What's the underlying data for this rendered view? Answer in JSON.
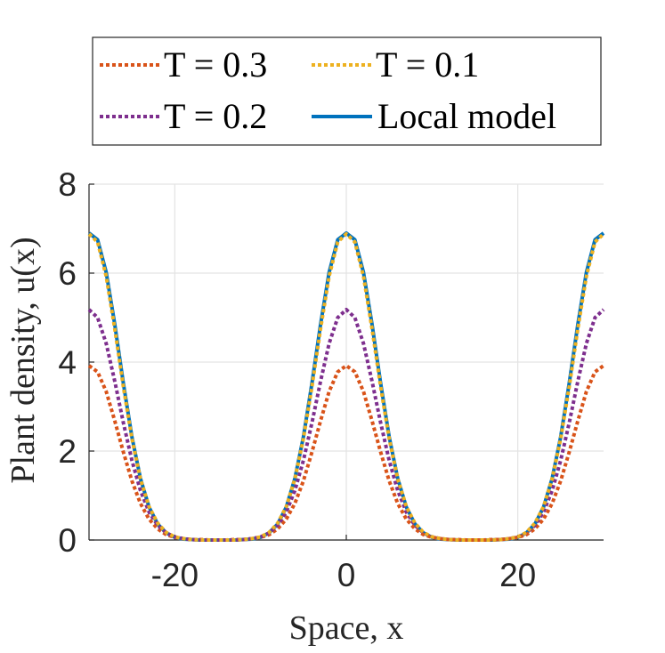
{
  "chart_data": {
    "type": "line",
    "title": "",
    "xlabel": "Space, x",
    "ylabel": "Plant density, u(x)",
    "xlim": [
      -30,
      30
    ],
    "ylim": [
      0,
      8
    ],
    "grid": true,
    "legend_placement": "top, outside plot",
    "x_ticks": [
      -20,
      0,
      20
    ],
    "x_tick_labels": [
      "-20",
      "0",
      "20"
    ],
    "y_ticks": [
      0,
      2,
      4,
      6,
      8
    ],
    "y_tick_labels": [
      "0",
      "2",
      "4",
      "6",
      "8"
    ],
    "x": [
      -30,
      -29,
      -28,
      -27,
      -26,
      -25,
      -24,
      -23,
      -22,
      -21,
      -20,
      -19,
      -18,
      -17,
      -16,
      -15,
      -14,
      -13,
      -12,
      -11,
      -10,
      -9,
      -8,
      -7,
      -6,
      -5,
      -4,
      -3,
      -2,
      -1,
      0,
      1,
      2,
      3,
      4,
      5,
      6,
      7,
      8,
      9,
      10,
      11,
      12,
      13,
      14,
      15,
      16,
      17,
      18,
      19,
      20,
      21,
      22,
      23,
      24,
      25,
      26,
      27,
      28,
      29,
      30
    ],
    "series": [
      {
        "name": "T = 0.3",
        "legend_label": "T = 0.3",
        "color": "#D95319",
        "style": "dotted",
        "values": [
          3.92,
          3.78,
          3.34,
          2.68,
          1.98,
          1.33,
          0.82,
          0.47,
          0.25,
          0.12,
          0.06,
          0.03,
          0.01,
          0.01,
          0.0,
          0.0,
          0.0,
          0.01,
          0.01,
          0.03,
          0.06,
          0.12,
          0.25,
          0.47,
          0.82,
          1.33,
          1.98,
          2.68,
          3.34,
          3.78,
          3.92,
          3.78,
          3.34,
          2.68,
          1.98,
          1.33,
          0.82,
          0.47,
          0.25,
          0.12,
          0.06,
          0.03,
          0.01,
          0.01,
          0.0,
          0.0,
          0.0,
          0.01,
          0.01,
          0.03,
          0.06,
          0.12,
          0.25,
          0.47,
          0.82,
          1.33,
          1.98,
          2.68,
          3.34,
          3.78,
          3.92
        ]
      },
      {
        "name": "T = 0.2",
        "legend_label": "T = 0.2",
        "color": "#7E2F8E",
        "style": "dotted",
        "values": [
          5.18,
          5.0,
          4.42,
          3.57,
          2.64,
          1.79,
          1.11,
          0.63,
          0.33,
          0.16,
          0.07,
          0.03,
          0.01,
          0.0,
          0.0,
          0.0,
          0.0,
          0.0,
          0.01,
          0.03,
          0.07,
          0.16,
          0.33,
          0.63,
          1.11,
          1.79,
          2.64,
          3.57,
          4.42,
          5.0,
          5.18,
          5.0,
          4.42,
          3.57,
          2.64,
          1.79,
          1.11,
          0.63,
          0.33,
          0.16,
          0.07,
          0.03,
          0.01,
          0.0,
          0.0,
          0.0,
          0.0,
          0.0,
          0.01,
          0.03,
          0.07,
          0.16,
          0.33,
          0.63,
          1.11,
          1.79,
          2.64,
          3.57,
          4.42,
          5.0,
          5.18
        ]
      },
      {
        "name": "T = 0.1",
        "legend_label": "T = 0.1",
        "color": "#EDB120",
        "style": "dotted",
        "values": [
          6.88,
          6.7,
          5.93,
          4.75,
          3.45,
          2.28,
          1.37,
          0.75,
          0.38,
          0.17,
          0.07,
          0.03,
          0.01,
          0.0,
          0.0,
          0.0,
          0.0,
          0.0,
          0.01,
          0.03,
          0.07,
          0.17,
          0.38,
          0.75,
          1.37,
          2.28,
          3.45,
          4.75,
          5.93,
          6.7,
          6.88,
          6.7,
          5.93,
          4.75,
          3.45,
          2.28,
          1.37,
          0.75,
          0.38,
          0.17,
          0.07,
          0.03,
          0.01,
          0.0,
          0.0,
          0.0,
          0.0,
          0.0,
          0.01,
          0.03,
          0.07,
          0.17,
          0.38,
          0.75,
          1.37,
          2.28,
          3.45,
          4.75,
          5.93,
          6.7,
          6.88
        ]
      },
      {
        "name": "Local model",
        "legend_label": "Local model",
        "color": "#0072BD",
        "style": "solid",
        "values": [
          6.9,
          6.75,
          6.02,
          4.85,
          3.53,
          2.32,
          1.38,
          0.74,
          0.36,
          0.16,
          0.06,
          0.02,
          0.01,
          0.0,
          0.0,
          0.0,
          0.0,
          0.0,
          0.01,
          0.02,
          0.06,
          0.16,
          0.36,
          0.74,
          1.38,
          2.32,
          3.53,
          4.85,
          6.02,
          6.75,
          6.9,
          6.75,
          6.02,
          4.85,
          3.53,
          2.32,
          1.38,
          0.74,
          0.36,
          0.16,
          0.06,
          0.02,
          0.01,
          0.0,
          0.0,
          0.0,
          0.0,
          0.0,
          0.01,
          0.02,
          0.06,
          0.16,
          0.36,
          0.74,
          1.38,
          2.32,
          3.53,
          4.85,
          6.02,
          6.75,
          6.9
        ]
      }
    ]
  }
}
